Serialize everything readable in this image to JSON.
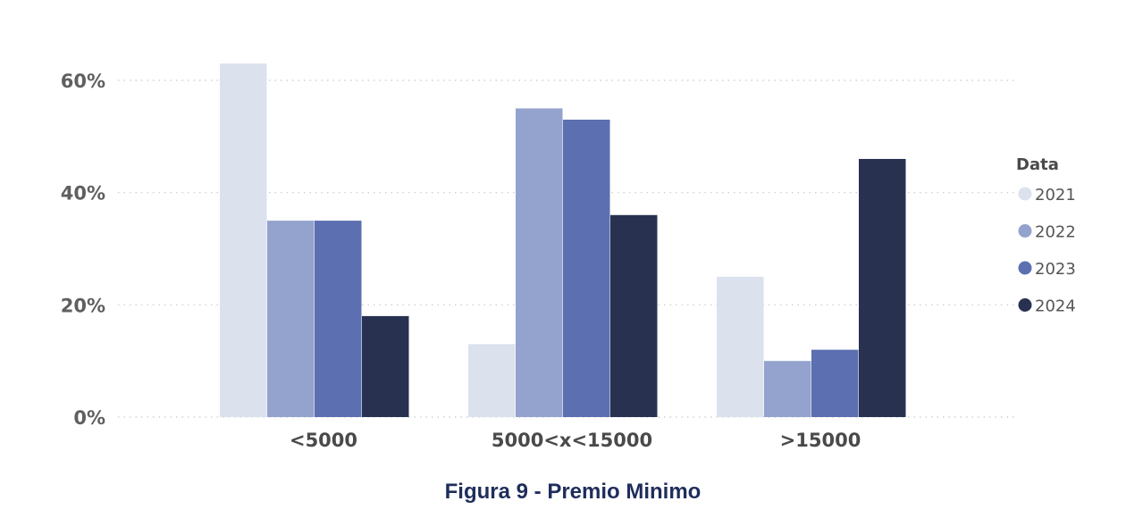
{
  "chart_data": {
    "type": "bar",
    "categories": [
      "<5000",
      "5000<x<15000",
      ">15000"
    ],
    "series": [
      {
        "name": "2021",
        "values": [
          63,
          13,
          25
        ],
        "color": "#dce1ee"
      },
      {
        "name": "2022",
        "values": [
          35,
          55,
          10
        ],
        "color": "#93a3cd"
      },
      {
        "name": "2023",
        "values": [
          35,
          53,
          12
        ],
        "color": "#5b6fb1"
      },
      {
        "name": "2024",
        "values": [
          18,
          36,
          46
        ],
        "color": "#283250"
      }
    ],
    "ylim": [
      0,
      60
    ],
    "yticks": [
      "0%",
      "20%",
      "40%",
      "60%"
    ],
    "ytick_values": [
      0,
      20,
      40,
      60
    ],
    "legend_title": "Data",
    "legend_position": "right",
    "grid": true
  },
  "caption": "Figura 9 - Premio Minimo"
}
